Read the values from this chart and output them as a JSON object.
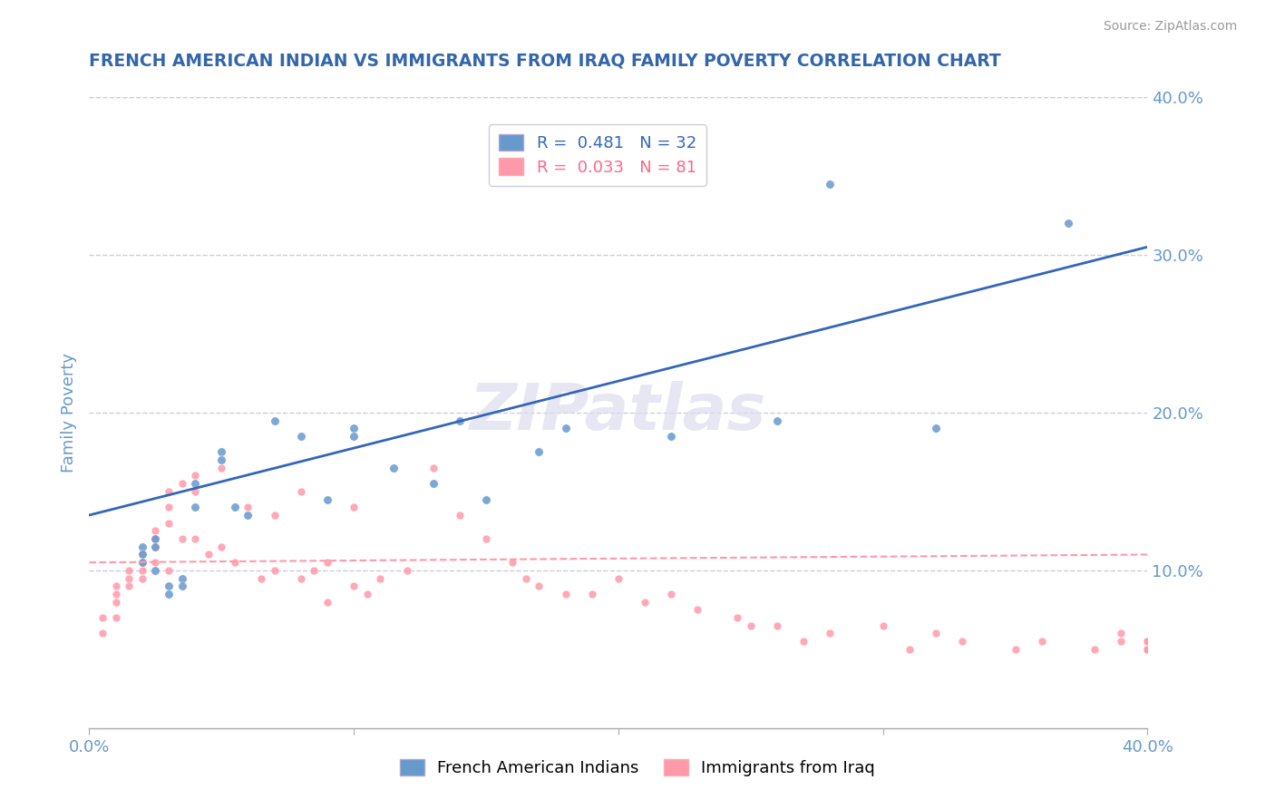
{
  "title": "FRENCH AMERICAN INDIAN VS IMMIGRANTS FROM IRAQ FAMILY POVERTY CORRELATION CHART",
  "source": "Source: ZipAtlas.com",
  "xlabel": "",
  "ylabel": "Family Poverty",
  "xlim": [
    0,
    0.4
  ],
  "ylim": [
    0,
    0.4
  ],
  "yticks_right": [
    0.1,
    0.2,
    0.3,
    0.4
  ],
  "ytick_right_labels": [
    "10.0%",
    "20.0%",
    "30.0%",
    "40.0%"
  ],
  "legend_r1": "R =  0.481   N = 32",
  "legend_r2": "R =  0.033   N = 81",
  "series1_name": "French American Indians",
  "series2_name": "Immigrants from Iraq",
  "series1_color": "#6699CC",
  "series2_color": "#FF99AA",
  "trend1_color": "#3366BB",
  "trend2_color": "#FF99AA",
  "legend_text1_color": "#3366BB",
  "legend_text2_color": "#FF6688",
  "watermark": "ZIPatlas",
  "title_color": "#3366AA",
  "axis_color": "#6699CC",
  "grid_color": "#CCCCDD",
  "series1_x": [
    0.02,
    0.02,
    0.02,
    0.025,
    0.025,
    0.025,
    0.03,
    0.03,
    0.035,
    0.035,
    0.04,
    0.04,
    0.05,
    0.05,
    0.055,
    0.06,
    0.07,
    0.08,
    0.09,
    0.1,
    0.1,
    0.115,
    0.13,
    0.14,
    0.15,
    0.17,
    0.18,
    0.22,
    0.26,
    0.28,
    0.32,
    0.37
  ],
  "series1_y": [
    0.115,
    0.11,
    0.105,
    0.12,
    0.115,
    0.1,
    0.09,
    0.085,
    0.095,
    0.09,
    0.155,
    0.14,
    0.175,
    0.17,
    0.14,
    0.135,
    0.195,
    0.185,
    0.145,
    0.19,
    0.185,
    0.165,
    0.155,
    0.195,
    0.145,
    0.175,
    0.19,
    0.185,
    0.195,
    0.345,
    0.19,
    0.32
  ],
  "series2_x": [
    0.005,
    0.005,
    0.01,
    0.01,
    0.01,
    0.01,
    0.015,
    0.015,
    0.015,
    0.02,
    0.02,
    0.02,
    0.02,
    0.025,
    0.025,
    0.025,
    0.025,
    0.03,
    0.03,
    0.03,
    0.03,
    0.035,
    0.035,
    0.04,
    0.04,
    0.04,
    0.045,
    0.05,
    0.05,
    0.055,
    0.06,
    0.065,
    0.07,
    0.07,
    0.08,
    0.08,
    0.085,
    0.09,
    0.09,
    0.1,
    0.1,
    0.105,
    0.11,
    0.12,
    0.13,
    0.14,
    0.15,
    0.16,
    0.165,
    0.17,
    0.18,
    0.19,
    0.2,
    0.21,
    0.22,
    0.23,
    0.245,
    0.25,
    0.26,
    0.27,
    0.28,
    0.3,
    0.31,
    0.32,
    0.33,
    0.35,
    0.36,
    0.38,
    0.39,
    0.39,
    0.4,
    0.4,
    0.4,
    0.4,
    0.4,
    0.4,
    0.4,
    0.4,
    0.4,
    0.4,
    0.4
  ],
  "series2_y": [
    0.07,
    0.06,
    0.09,
    0.085,
    0.08,
    0.07,
    0.1,
    0.095,
    0.09,
    0.11,
    0.105,
    0.1,
    0.095,
    0.125,
    0.12,
    0.115,
    0.105,
    0.15,
    0.14,
    0.13,
    0.1,
    0.155,
    0.12,
    0.16,
    0.15,
    0.12,
    0.11,
    0.165,
    0.115,
    0.105,
    0.14,
    0.095,
    0.135,
    0.1,
    0.15,
    0.095,
    0.1,
    0.105,
    0.08,
    0.14,
    0.09,
    0.085,
    0.095,
    0.1,
    0.165,
    0.135,
    0.12,
    0.105,
    0.095,
    0.09,
    0.085,
    0.085,
    0.095,
    0.08,
    0.085,
    0.075,
    0.07,
    0.065,
    0.065,
    0.055,
    0.06,
    0.065,
    0.05,
    0.06,
    0.055,
    0.05,
    0.055,
    0.05,
    0.06,
    0.055,
    0.055,
    0.05,
    0.055,
    0.05,
    0.05,
    0.05,
    0.05,
    0.05,
    0.05,
    0.05,
    0.05
  ],
  "trend1_x0": 0.0,
  "trend1_x1": 0.4,
  "trend1_y0": 0.135,
  "trend1_y1": 0.305,
  "trend2_x0": 0.0,
  "trend2_x1": 0.4,
  "trend2_y0": 0.105,
  "trend2_y1": 0.11
}
